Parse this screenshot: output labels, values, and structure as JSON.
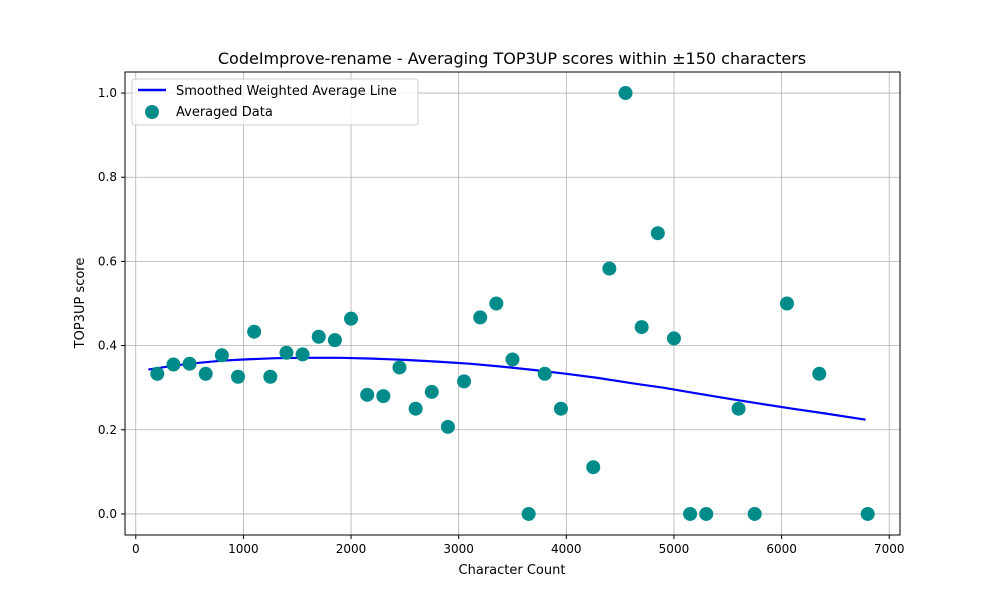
{
  "chart_data": {
    "type": "scatter",
    "title": "CodeImprove-rename - Averaging TOP3UP scores within ±150 characters",
    "xlabel": "Character Count",
    "ylabel": "TOP3UP score",
    "xlim": [
      -100,
      7100
    ],
    "ylim": [
      -0.05,
      1.05
    ],
    "xticks": [
      0,
      1000,
      2000,
      3000,
      4000,
      5000,
      6000,
      7000
    ],
    "yticks": [
      0.0,
      0.2,
      0.4,
      0.6,
      0.8,
      1.0
    ],
    "xtick_labels": [
      "0",
      "1000",
      "2000",
      "3000",
      "4000",
      "5000",
      "6000",
      "7000"
    ],
    "ytick_labels": [
      "0.0",
      "0.2",
      "0.4",
      "0.6",
      "0.8",
      "1.0"
    ],
    "grid": true,
    "legend_position": "top-left",
    "series": [
      {
        "name": "Smoothed Weighted Average Line",
        "kind": "line",
        "color": "#0000ff",
        "points": [
          [
            117,
            0.343
          ],
          [
            300,
            0.35
          ],
          [
            500,
            0.357
          ],
          [
            800,
            0.364
          ],
          [
            1000,
            0.367
          ],
          [
            1300,
            0.37
          ],
          [
            1600,
            0.371
          ],
          [
            1900,
            0.371
          ],
          [
            2200,
            0.369
          ],
          [
            2500,
            0.366
          ],
          [
            2800,
            0.362
          ],
          [
            3100,
            0.357
          ],
          [
            3400,
            0.35
          ],
          [
            3700,
            0.342
          ],
          [
            4000,
            0.333
          ],
          [
            4300,
            0.323
          ],
          [
            4600,
            0.311
          ],
          [
            4900,
            0.3
          ],
          [
            5200,
            0.287
          ],
          [
            5500,
            0.274
          ],
          [
            5800,
            0.262
          ],
          [
            6100,
            0.25
          ],
          [
            6400,
            0.239
          ],
          [
            6780,
            0.224
          ]
        ]
      },
      {
        "name": "Averaged Data",
        "kind": "scatter",
        "color": "#008b8b",
        "points": [
          [
            200,
            0.333
          ],
          [
            350,
            0.355
          ],
          [
            500,
            0.357
          ],
          [
            650,
            0.333
          ],
          [
            800,
            0.377
          ],
          [
            950,
            0.326
          ],
          [
            1100,
            0.433
          ],
          [
            1250,
            0.326
          ],
          [
            1400,
            0.383
          ],
          [
            1550,
            0.379
          ],
          [
            1700,
            0.421
          ],
          [
            1850,
            0.413
          ],
          [
            2000,
            0.464
          ],
          [
            2150,
            0.283
          ],
          [
            2300,
            0.28
          ],
          [
            2450,
            0.348
          ],
          [
            2600,
            0.25
          ],
          [
            2750,
            0.29
          ],
          [
            2900,
            0.207
          ],
          [
            3050,
            0.315
          ],
          [
            3200,
            0.467
          ],
          [
            3350,
            0.5
          ],
          [
            3500,
            0.367
          ],
          [
            3650,
            0.0
          ],
          [
            3800,
            0.333
          ],
          [
            3950,
            0.25
          ],
          [
            4250,
            0.111
          ],
          [
            4400,
            0.583
          ],
          [
            4550,
            1.0
          ],
          [
            4700,
            0.444
          ],
          [
            4850,
            0.667
          ],
          [
            5000,
            0.417
          ],
          [
            5150,
            0.0
          ],
          [
            5300,
            0.0
          ],
          [
            5600,
            0.25
          ],
          [
            5750,
            0.0
          ],
          [
            6050,
            0.5
          ],
          [
            6350,
            0.333
          ],
          [
            6800,
            0.0
          ]
        ]
      }
    ]
  }
}
